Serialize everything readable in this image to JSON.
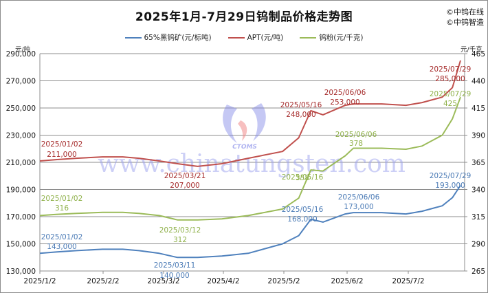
{
  "title": "2025年1月-7月29日钨制品价格走势图",
  "brand": [
    "©中钨在线",
    "©中钨智造"
  ],
  "watermark": {
    "text": "www.chinatungsten.com",
    "logo_text": "CTOMS"
  },
  "legend": [
    {
      "label": "65%黑钨矿(元/标吨)",
      "color": "#4f81bd"
    },
    {
      "label": "APT(元/吨)",
      "color": "#c0504d"
    },
    {
      "label": "钨粉(元/千克)",
      "color": "#9bbb59"
    }
  ],
  "axes": {
    "left_unit": "元/吨",
    "right_unit": "元/千克",
    "left_ticks": [
      "290,000",
      "270,000",
      "250,000",
      "230,000",
      "210,000",
      "190,000",
      "170,000",
      "150,000",
      "130,000"
    ],
    "right_ticks": [
      "465",
      "440",
      "415",
      "390",
      "365",
      "340",
      "315",
      "290",
      "265"
    ],
    "x_ticks": [
      "2025/1/2",
      "2025/2/2",
      "2025/3/2",
      "2025/4/2",
      "2025/5/2",
      "2025/6/2",
      "2025/7/2"
    ]
  },
  "annotations": [
    {
      "date": "2025/01/02",
      "value": "211,000",
      "series": "APT"
    },
    {
      "date": "2025/03/21",
      "value": "207,000",
      "series": "APT"
    },
    {
      "date": "2025/05/16",
      "value": "248,000",
      "series": "APT"
    },
    {
      "date": "2025/06/06",
      "value": "253,000",
      "series": "APT"
    },
    {
      "date": "2025/07/29",
      "value": "285,000",
      "series": "APT"
    },
    {
      "date": "2025/01/02",
      "value": "316",
      "series": "钨粉"
    },
    {
      "date": "2025/03/12",
      "value": "312",
      "series": "钨粉"
    },
    {
      "date": "2025/05/16",
      "value": "358",
      "series": "钨粉"
    },
    {
      "date": "2025/06/06",
      "value": "378",
      "series": "钨粉"
    },
    {
      "date": "2025/07/29",
      "value": "425",
      "series": "钨粉"
    },
    {
      "date": "2025/01/02",
      "value": "143,000",
      "series": "65%黑钨矿"
    },
    {
      "date": "2025/03/11",
      "value": "140,000",
      "series": "65%黑钨矿"
    },
    {
      "date": "2025/05/16",
      "value": "168,000",
      "series": "65%黑钨矿"
    },
    {
      "date": "2025/06/06",
      "value": "173,000",
      "series": "65%黑钨矿"
    },
    {
      "date": "2025/07/29",
      "value": "193,000",
      "series": "65%黑钨矿"
    }
  ],
  "chart_data": {
    "type": "line",
    "title": "2025年1月-7月29日钨制品价格走势图",
    "xlabel": "",
    "ylabel": "元/吨",
    "ylabel_right": "元/千克",
    "ylim": [
      130000,
      290000
    ],
    "ylim_right": [
      265,
      465
    ],
    "grid": true,
    "legend_position": "top",
    "x": [
      "2025/1/2",
      "2025/1/10",
      "2025/1/20",
      "2025/2/2",
      "2025/2/12",
      "2025/2/20",
      "2025/3/2",
      "2025/3/11",
      "2025/3/21",
      "2025/4/2",
      "2025/4/15",
      "2025/5/2",
      "2025/5/10",
      "2025/5/16",
      "2025/5/22",
      "2025/6/2",
      "2025/6/6",
      "2025/6/20",
      "2025/7/2",
      "2025/7/10",
      "2025/7/20",
      "2025/7/25",
      "2025/7/29"
    ],
    "series": [
      {
        "name": "65%黑钨矿(元/标吨)",
        "axis": "left",
        "color": "#4f81bd",
        "values": [
          143000,
          144000,
          145000,
          146000,
          146000,
          145000,
          143000,
          140000,
          140000,
          141000,
          143000,
          150000,
          156000,
          168000,
          166000,
          172000,
          173000,
          173000,
          172000,
          174000,
          178000,
          184000,
          193000
        ]
      },
      {
        "name": "APT(元/吨)",
        "axis": "left",
        "color": "#c0504d",
        "values": [
          211000,
          212000,
          213000,
          214000,
          214000,
          213000,
          211000,
          209000,
          207000,
          209000,
          213000,
          218000,
          228000,
          248000,
          245000,
          252000,
          253000,
          253000,
          252000,
          254000,
          258000,
          265000,
          285000
        ]
      },
      {
        "name": "钨粉(元/千克)",
        "axis": "right",
        "color": "#9bbb59",
        "values": [
          316,
          317,
          318,
          319,
          319,
          318,
          316,
          312,
          312,
          313,
          316,
          322,
          332,
          358,
          357,
          371,
          378,
          378,
          377,
          380,
          390,
          405,
          425
        ]
      }
    ]
  }
}
